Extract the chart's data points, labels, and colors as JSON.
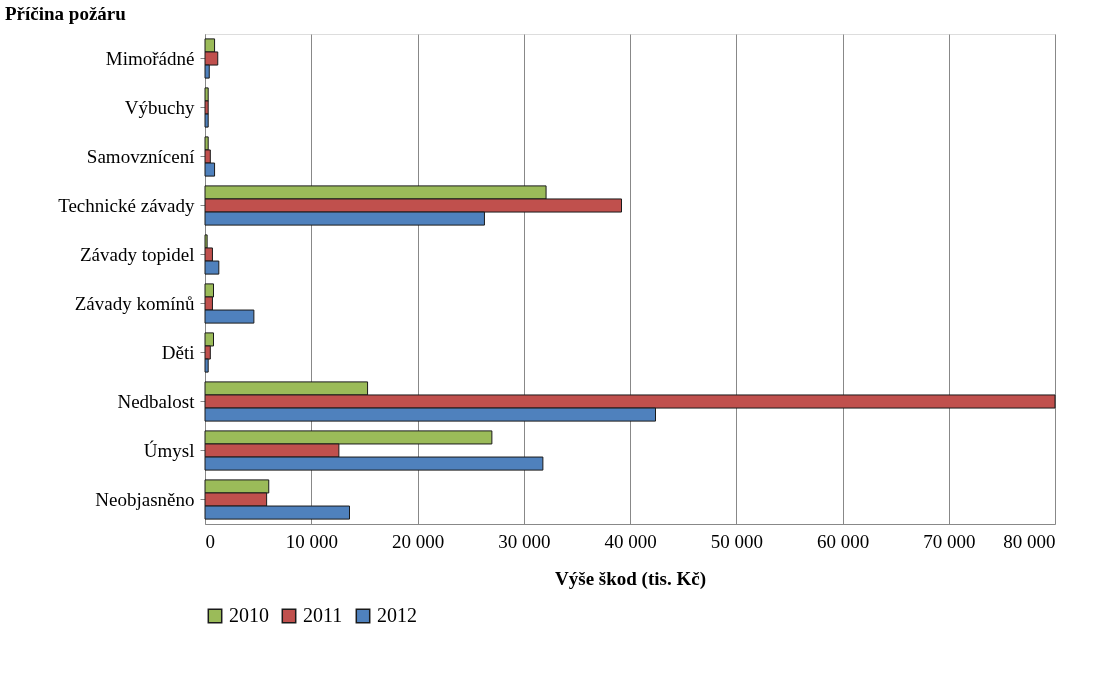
{
  "chart_data": {
    "type": "bar",
    "orientation": "horizontal",
    "title": "Příčina požáru",
    "xlabel": "Výše škod (tis. Kč)",
    "categories": [
      "Mimořádné",
      "Výbuchy",
      "Samovznícení",
      "Technické závady",
      "Závady topidel",
      "Závady komínů",
      "Děti",
      "Nedbalost",
      "Úmysl",
      "Neobjasněno"
    ],
    "series": [
      {
        "name": "2010",
        "color": "#9bbb59",
        "values": [
          900,
          300,
          300,
          32100,
          200,
          800,
          800,
          15300,
          27000,
          6000
        ]
      },
      {
        "name": "2011",
        "color": "#c0504d",
        "values": [
          1200,
          300,
          500,
          39200,
          700,
          700,
          500,
          80000,
          12600,
          5800
        ]
      },
      {
        "name": "2012",
        "color": "#4f81bd",
        "values": [
          400,
          300,
          900,
          26300,
          1300,
          4600,
          300,
          42400,
          31800,
          13600
        ]
      }
    ],
    "xlim": [
      0,
      80000
    ],
    "xticks": [
      0,
      {
        "value": 10000,
        "label": "10 000"
      },
      {
        "value": 20000,
        "label": "20 000"
      },
      {
        "value": 30000,
        "label": "30 000"
      },
      {
        "value": 40000,
        "label": "40 000"
      },
      {
        "value": 50000,
        "label": "50 000"
      },
      {
        "value": 60000,
        "label": "60 000"
      },
      {
        "value": 70000,
        "label": "70 000"
      },
      {
        "value": 80000,
        "label": "80 000"
      }
    ],
    "grid": "x",
    "legend": "bottom"
  }
}
